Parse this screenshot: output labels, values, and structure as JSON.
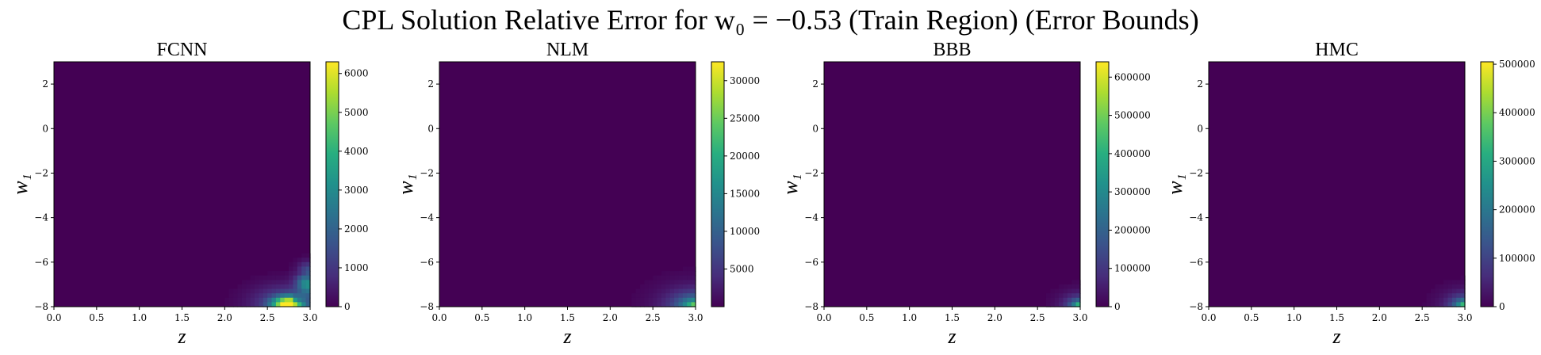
{
  "figure": {
    "title": "CPL Solution Relative Error for w₀ = −0.53 (Train Region) (Error Bounds)",
    "colormap": "viridis"
  },
  "chart_data": [
    {
      "type": "heatmap",
      "title": "FCNN",
      "xlabel": "z",
      "ylabel": "w₁",
      "xlim": [
        0.0,
        3.0
      ],
      "ylim": [
        -8,
        3
      ],
      "xticks": [
        "0.0",
        "0.5",
        "1.0",
        "1.5",
        "2.0",
        "2.5",
        "3.0"
      ],
      "yticks": [
        "−8",
        "−6",
        "−4",
        "−2",
        "0",
        "2"
      ],
      "colorbar": {
        "min": 0,
        "max": 6300,
        "ticks": [
          "0",
          "1000",
          "2000",
          "3000",
          "4000",
          "5000",
          "6000"
        ]
      },
      "peak": {
        "z": 2.75,
        "w1": -7.9,
        "value": 6300
      }
    },
    {
      "type": "heatmap",
      "title": "NLM",
      "xlabel": "z",
      "ylabel": "w₁",
      "xlim": [
        0.0,
        3.0
      ],
      "ylim": [
        -8,
        3
      ],
      "xticks": [
        "0.0",
        "0.5",
        "1.0",
        "1.5",
        "2.0",
        "2.5",
        "3.0"
      ],
      "yticks": [
        "−8",
        "−6",
        "−4",
        "−2",
        "0",
        "2"
      ],
      "colorbar": {
        "min": 0,
        "max": 32500,
        "ticks": [
          "5000",
          "10000",
          "15000",
          "20000",
          "25000",
          "30000"
        ]
      },
      "peak": {
        "z": 3.0,
        "w1": -8.0,
        "value": 32500
      }
    },
    {
      "type": "heatmap",
      "title": "BBB",
      "xlabel": "z",
      "ylabel": "w₁",
      "xlim": [
        0.0,
        3.0
      ],
      "ylim": [
        -8,
        3
      ],
      "xticks": [
        "0.0",
        "0.5",
        "1.0",
        "1.5",
        "2.0",
        "2.5",
        "3.0"
      ],
      "yticks": [
        "−8",
        "−6",
        "−4",
        "−2",
        "0",
        "2"
      ],
      "colorbar": {
        "min": 0,
        "max": 640000,
        "ticks": [
          "0",
          "100000",
          "200000",
          "300000",
          "400000",
          "500000",
          "600000"
        ]
      },
      "peak": {
        "z": 3.0,
        "w1": -8.0,
        "value": 640000
      }
    },
    {
      "type": "heatmap",
      "title": "HMC",
      "xlabel": "z",
      "ylabel": "w₁",
      "xlim": [
        0.0,
        3.0
      ],
      "ylim": [
        -8,
        3
      ],
      "xticks": [
        "0.0",
        "0.5",
        "1.0",
        "1.5",
        "2.0",
        "2.5",
        "3.0"
      ],
      "yticks": [
        "−8",
        "−6",
        "−4",
        "−2",
        "0",
        "2"
      ],
      "colorbar": {
        "min": 0,
        "max": 505000,
        "ticks": [
          "0",
          "100000",
          "200000",
          "300000",
          "400000",
          "500000"
        ]
      },
      "peak": {
        "z": 3.0,
        "w1": -8.0,
        "value": 505000
      }
    }
  ]
}
